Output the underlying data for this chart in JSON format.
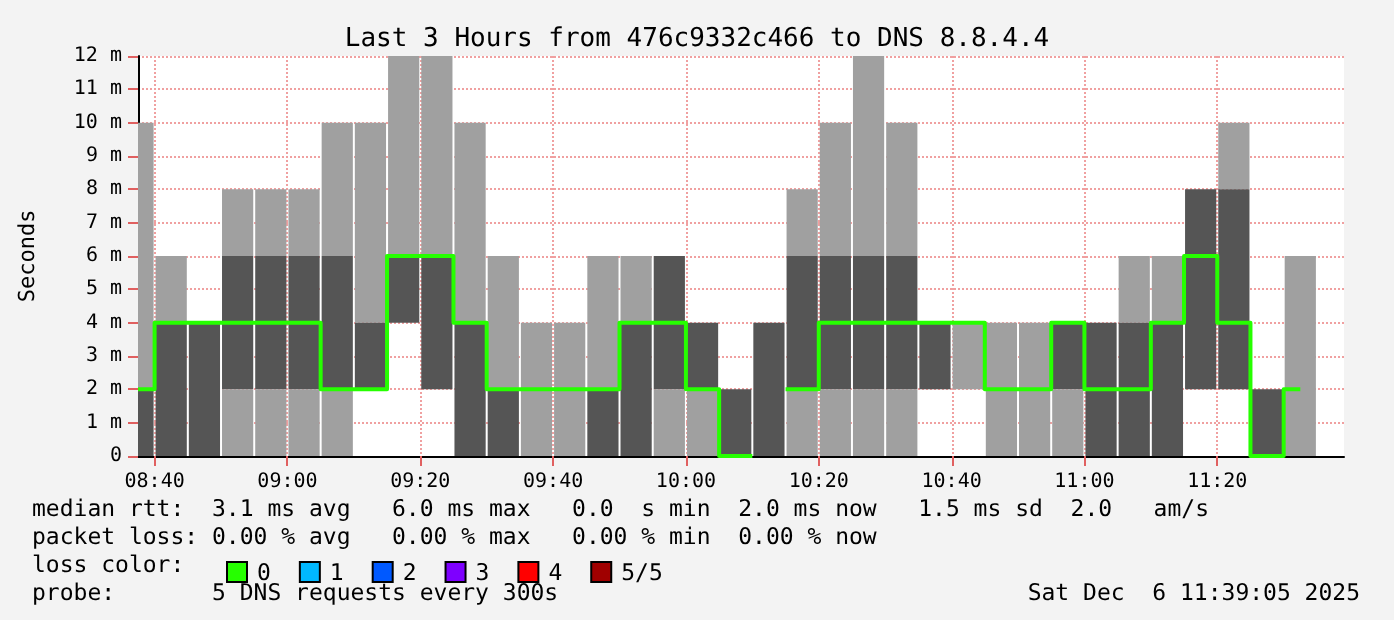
{
  "chart_data": {
    "type": "bar",
    "title": "Last 3 Hours from 476c9332c466 to DNS 8.8.4.4",
    "ylabel": "Seconds",
    "legend_title": "loss color:",
    "annotations": [
      "median rtt:  3.1 ms avg   6.0 ms max   0.0  s min  2.0 ms now   1.5 ms sd  2.0   am/s",
      "packet loss: 0.00 % avg   0.00 % max   0.00 % min  0.00 % now",
      "probe:       5 DNS requests every 300s",
      "Sat Dec  6 11:39:05 2025"
    ],
    "x": [
      8.625,
      8.7083,
      8.7917,
      8.875,
      8.9583,
      9.0417,
      9.125,
      9.2083,
      9.2917,
      9.375,
      9.4583,
      9.5417,
      9.625,
      9.7083,
      9.7917,
      9.875,
      9.9583,
      10.0417,
      10.125,
      10.2083,
      10.2917,
      10.375,
      10.4583,
      10.5417,
      10.625,
      10.7083,
      10.7917,
      10.875,
      10.9583,
      11.0417,
      11.125,
      11.2083,
      11.2917,
      11.375,
      11.4583,
      11.5417
    ],
    "xlim": [
      8.625,
      11.6514
    ],
    "xticks": [
      {
        "value": 8.6667,
        "label": "08:40"
      },
      {
        "value": 9,
        "label": "09:00"
      },
      {
        "value": 9.3333,
        "label": "09:20"
      },
      {
        "value": 9.6667,
        "label": "09:40"
      },
      {
        "value": 10,
        "label": "10:00"
      },
      {
        "value": 10.3333,
        "label": "10:20"
      },
      {
        "value": 10.6667,
        "label": "10:40"
      },
      {
        "value": 11,
        "label": "11:00"
      },
      {
        "value": 11.3333,
        "label": "11:20"
      }
    ],
    "ylim": [
      0,
      12
    ],
    "yticks": [
      0,
      {
        "value": 1,
        "label": "1 m"
      },
      {
        "value": 2,
        "label": "2 m"
      },
      {
        "value": 3,
        "label": "3 m"
      },
      {
        "value": 4,
        "label": "4 m"
      },
      {
        "value": 5,
        "label": "5 m"
      },
      {
        "value": 6,
        "label": "6 m"
      },
      {
        "value": 7,
        "label": "7 m"
      },
      {
        "value": 8,
        "label": "8 m"
      },
      {
        "value": 9,
        "label": "9 m"
      },
      {
        "value": 10,
        "label": "10 m"
      },
      {
        "value": 11,
        "label": "11 m"
      },
      {
        "value": 12,
        "label": "12 m"
      }
    ],
    "grid": true,
    "legend": "bottom left",
    "marker": "none",
    "series": [
      {
        "color": "#a0a0a0",
        "base": [
          2,
          4,
          null,
          6,
          6,
          6,
          6,
          4,
          6,
          6,
          4,
          2,
          0,
          0,
          2,
          4,
          null,
          null,
          null,
          null,
          6,
          6,
          6,
          6,
          null,
          2,
          0,
          0,
          null,
          null,
          4,
          4,
          null,
          8,
          null,
          0
        ],
        "values": [
          8,
          2,
          null,
          2,
          2,
          2,
          4,
          6,
          6,
          6,
          6,
          4,
          4,
          4,
          4,
          2,
          null,
          null,
          null,
          null,
          2,
          4,
          6,
          4,
          null,
          2,
          4,
          4,
          null,
          null,
          2,
          2,
          null,
          2,
          null,
          6
        ]
      },
      {
        "color": "#555555",
        "base": [
          0,
          0,
          0,
          2,
          2,
          2,
          2,
          2,
          4,
          2,
          0,
          0,
          null,
          null,
          0,
          0,
          2,
          2,
          0,
          0,
          2,
          2,
          2,
          2,
          2,
          null,
          null,
          null,
          2,
          0,
          0,
          0,
          2,
          2,
          0,
          null
        ],
        "values": [
          2,
          4,
          4,
          4,
          4,
          4,
          4,
          2,
          2,
          4,
          4,
          2,
          null,
          null,
          2,
          4,
          4,
          2,
          2,
          4,
          4,
          4,
          4,
          4,
          2,
          null,
          null,
          null,
          2,
          4,
          4,
          4,
          6,
          6,
          2,
          null
        ]
      },
      {
        "color": "#a0a0a0",
        "base": [
          null,
          null,
          null,
          0,
          0,
          0,
          0,
          null,
          null,
          null,
          null,
          null,
          null,
          null,
          null,
          null,
          0,
          0,
          null,
          null,
          0,
          0,
          0,
          0,
          null,
          null,
          null,
          null,
          0,
          null,
          null,
          null,
          null,
          null,
          null,
          null
        ],
        "values": [
          null,
          null,
          null,
          2,
          2,
          2,
          2,
          null,
          null,
          null,
          null,
          null,
          null,
          null,
          null,
          null,
          2,
          2,
          null,
          null,
          2,
          2,
          2,
          2,
          null,
          null,
          null,
          null,
          2,
          null,
          null,
          null,
          null,
          null,
          null,
          null
        ]
      },
      {
        "type": "step",
        "name": "0",
        "color": "#26ff00",
        "values": [
          2,
          4,
          4,
          4,
          4,
          4,
          2,
          2,
          6,
          6,
          4,
          2,
          2,
          2,
          2,
          4,
          4,
          2,
          0,
          null,
          2,
          4,
          4,
          4,
          4,
          4,
          2,
          2,
          4,
          2,
          2,
          4,
          6,
          4,
          0,
          2
        ]
      },
      {
        "type": "step",
        "name": "1",
        "color": "#00b8ff",
        "values": [
          null,
          null,
          null,
          null,
          null,
          null,
          null,
          null,
          null,
          null,
          null,
          null,
          null,
          null,
          null,
          null,
          null,
          null,
          null,
          null,
          null,
          null,
          null,
          null,
          null,
          null,
          null,
          null,
          null,
          null,
          null,
          null,
          null,
          null,
          null,
          null
        ]
      },
      {
        "type": "step",
        "name": "2",
        "color": "#0059ff",
        "values": [
          null,
          null,
          null,
          null,
          null,
          null,
          null,
          null,
          null,
          null,
          null,
          null,
          null,
          null,
          null,
          null,
          null,
          null,
          null,
          null,
          null,
          null,
          null,
          null,
          null,
          null,
          null,
          null,
          null,
          null,
          null,
          null,
          null,
          null,
          null,
          null
        ]
      },
      {
        "type": "step",
        "name": "3",
        "color": "#7e00ff",
        "values": [
          null,
          null,
          null,
          null,
          null,
          null,
          null,
          null,
          null,
          null,
          null,
          null,
          null,
          null,
          null,
          null,
          null,
          null,
          null,
          null,
          null,
          null,
          null,
          null,
          null,
          null,
          null,
          null,
          null,
          null,
          null,
          null,
          null,
          null,
          null,
          null
        ]
      },
      {
        "type": "step",
        "name": "4",
        "color": "#ff0000",
        "values": [
          null,
          null,
          null,
          null,
          null,
          null,
          null,
          null,
          null,
          null,
          null,
          null,
          null,
          null,
          null,
          null,
          null,
          null,
          null,
          null,
          null,
          null,
          null,
          null,
          null,
          null,
          null,
          null,
          null,
          null,
          null,
          null,
          null,
          null,
          null,
          null
        ]
      },
      {
        "type": "step",
        "name": "5/5",
        "color": "#a00000",
        "values": [
          null,
          null,
          null,
          null,
          null,
          null,
          null,
          null,
          null,
          null,
          null,
          null,
          null,
          null,
          null,
          null,
          null,
          null,
          null,
          null,
          null,
          null,
          null,
          null,
          null,
          null,
          null,
          null,
          null,
          null,
          null,
          null,
          null,
          null,
          null,
          null
        ]
      }
    ]
  }
}
